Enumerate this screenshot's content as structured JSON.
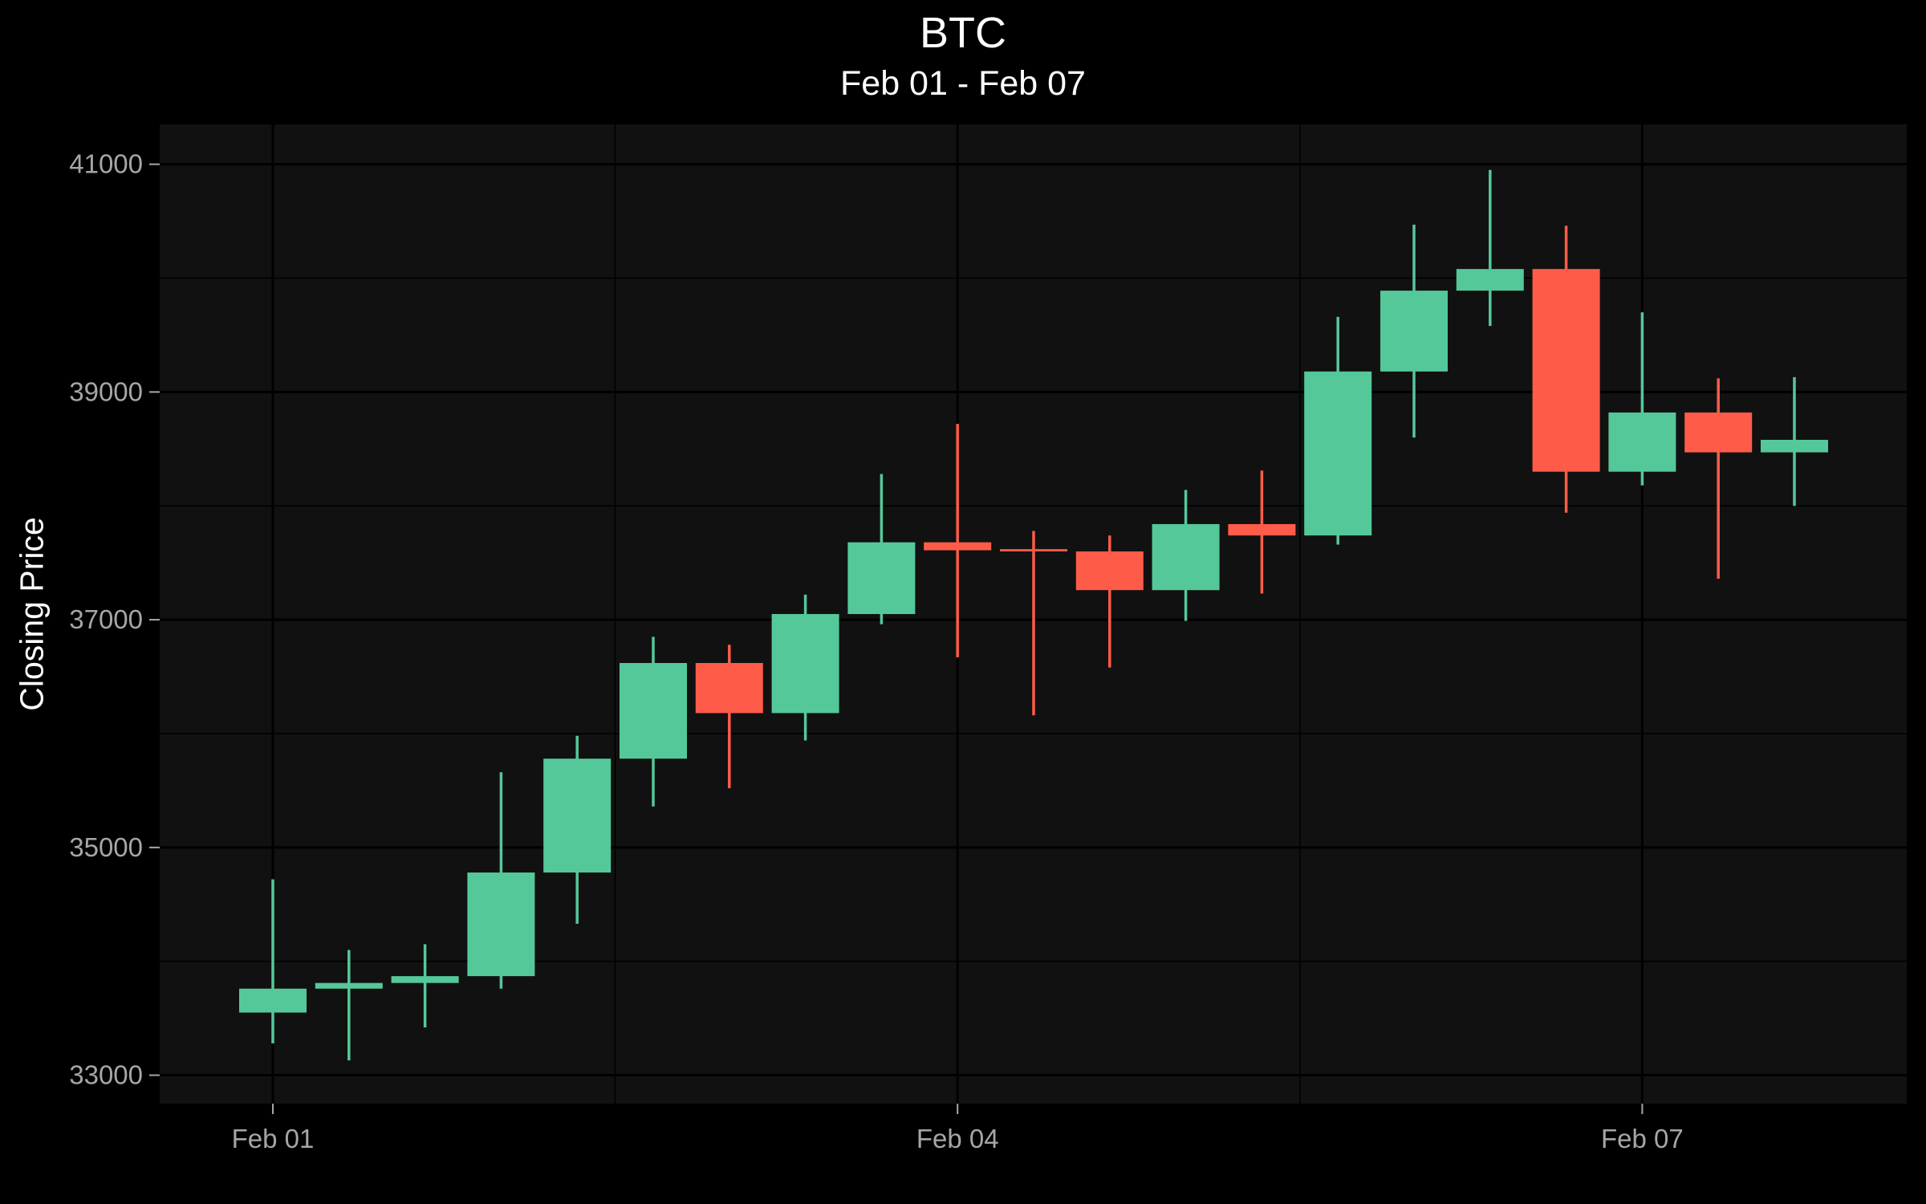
{
  "chart_data": {
    "type": "candlestick",
    "title": "BTC",
    "subtitle": "Feb 01 - Feb 07",
    "xlabel": "",
    "ylabel": "Closing Price",
    "ylim": [
      32750,
      41350
    ],
    "y_ticks": [
      33000,
      35000,
      37000,
      39000,
      41000
    ],
    "x_ticks": [
      {
        "label": "Feb 01",
        "index": 0
      },
      {
        "label": "Feb 04",
        "index": 9
      },
      {
        "label": "Feb 07",
        "index": 18
      }
    ],
    "grid": true,
    "colors": {
      "up": "#55c89a",
      "down": "#fe5c49",
      "panel": "#111111",
      "grid": "#000000",
      "background": "#000000"
    },
    "candles": [
      {
        "open": 33550,
        "high": 34720,
        "low": 33280,
        "close": 33760
      },
      {
        "open": 33760,
        "high": 34100,
        "low": 33130,
        "close": 33810
      },
      {
        "open": 33810,
        "high": 34150,
        "low": 33420,
        "close": 33870
      },
      {
        "open": 33870,
        "high": 35660,
        "low": 33760,
        "close": 34780
      },
      {
        "open": 34780,
        "high": 35980,
        "low": 34330,
        "close": 35780
      },
      {
        "open": 35780,
        "high": 36850,
        "low": 35360,
        "close": 36620
      },
      {
        "open": 36620,
        "high": 36780,
        "low": 35520,
        "close": 36180
      },
      {
        "open": 36180,
        "high": 37220,
        "low": 35940,
        "close": 37050
      },
      {
        "open": 37050,
        "high": 38280,
        "low": 36960,
        "close": 37680
      },
      {
        "open": 37680,
        "high": 38720,
        "low": 36670,
        "close": 37610
      },
      {
        "open": 37620,
        "high": 37780,
        "low": 36160,
        "close": 37600
      },
      {
        "open": 37600,
        "high": 37740,
        "low": 36580,
        "close": 37260
      },
      {
        "open": 37260,
        "high": 38140,
        "low": 36990,
        "close": 37840
      },
      {
        "open": 37840,
        "high": 38310,
        "low": 37230,
        "close": 37740
      },
      {
        "open": 37740,
        "high": 39660,
        "low": 37660,
        "close": 39180
      },
      {
        "open": 39180,
        "high": 40470,
        "low": 38600,
        "close": 39890
      },
      {
        "open": 39890,
        "high": 40950,
        "low": 39580,
        "close": 40080
      },
      {
        "open": 40080,
        "high": 40460,
        "low": 37940,
        "close": 38300
      },
      {
        "open": 38300,
        "high": 39700,
        "low": 38180,
        "close": 38820
      },
      {
        "open": 38820,
        "high": 39120,
        "low": 37360,
        "close": 38470
      },
      {
        "open": 38470,
        "high": 39130,
        "low": 38000,
        "close": 38580
      }
    ]
  }
}
